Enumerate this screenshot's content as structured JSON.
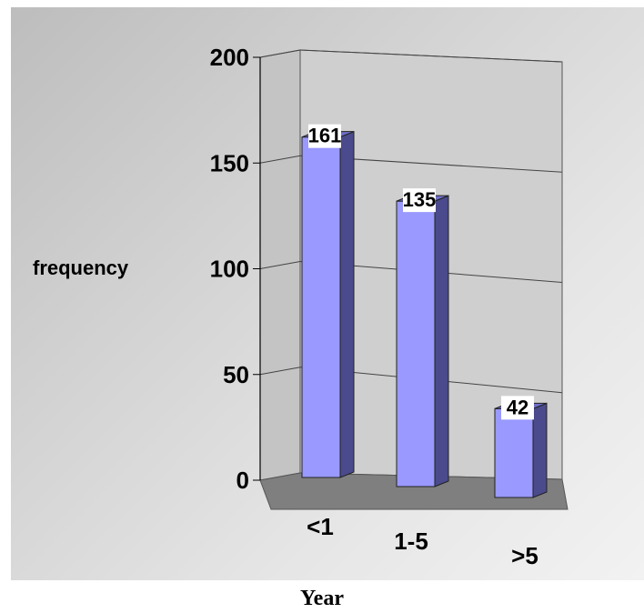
{
  "chart_data": {
    "type": "bar",
    "style": "3d-column",
    "categories": [
      "<1",
      "1-5",
      ">5"
    ],
    "values": [
      161,
      135,
      42
    ],
    "xlabel": "Year",
    "ylabel": "frequency",
    "ylim": [
      0,
      200
    ],
    "yticks": [
      0,
      50,
      100,
      150,
      200
    ],
    "grid": true,
    "legend": "none",
    "colors": {
      "bar_front": "#9999ff",
      "bar_side": "#4a4a8c",
      "bar_top": "#7070c8",
      "floor": "#7f7f7f",
      "back_wall": "#cfcfcf",
      "side_wall": "#c4c4c4"
    }
  }
}
